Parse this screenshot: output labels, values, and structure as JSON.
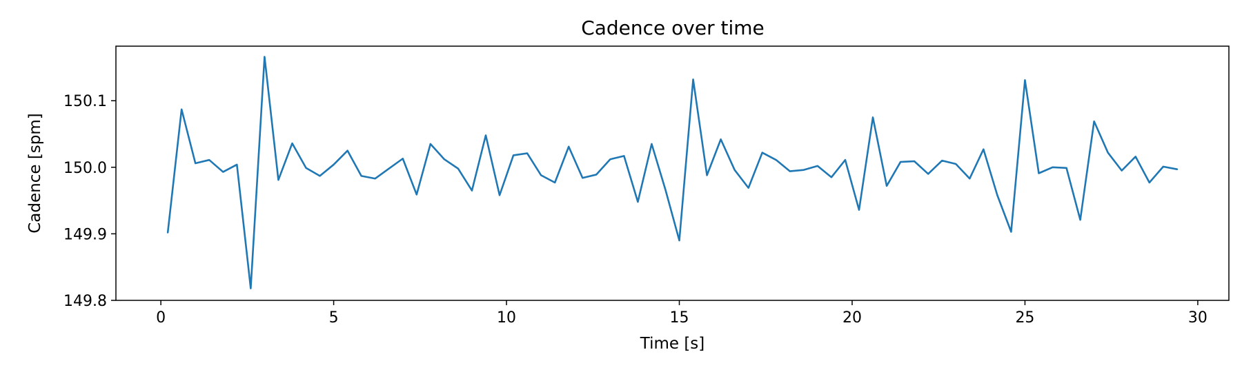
{
  "chart_data": {
    "type": "line",
    "title": "Cadence over time",
    "xlabel": "Time [s]",
    "ylabel": "Cadence [spm]",
    "xlim": [
      -1.3,
      30.9
    ],
    "ylim": [
      149.8,
      150.182
    ],
    "xticks": [
      0,
      5,
      10,
      15,
      20,
      25,
      30
    ],
    "xtick_labels": [
      "0",
      "5",
      "10",
      "15",
      "20",
      "25",
      "30"
    ],
    "yticks": [
      149.8,
      149.9,
      150.0,
      150.1
    ],
    "ytick_labels": [
      "149.8",
      "149.9",
      "150.0",
      "150.1"
    ],
    "grid": false,
    "series": [
      {
        "color": "#1f77b4",
        "x": [
          0.2,
          0.6,
          1.0,
          1.4,
          1.8,
          2.2,
          2.6,
          3.0,
          3.4,
          3.8,
          4.2,
          4.6,
          5.0,
          5.4,
          5.8,
          6.2,
          6.6,
          7.0,
          7.4,
          7.8,
          8.2,
          8.6,
          9.0,
          9.4,
          9.8,
          10.2,
          10.6,
          11.0,
          11.4,
          11.8,
          12.2,
          12.6,
          13.0,
          13.4,
          13.8,
          14.2,
          14.6,
          15.0,
          15.4,
          15.8,
          16.2,
          16.6,
          17.0,
          17.4,
          17.8,
          18.2,
          18.6,
          19.0,
          19.4,
          19.8,
          20.2,
          20.6,
          21.0,
          21.4,
          21.8,
          22.2,
          22.6,
          23.0,
          23.4,
          23.8,
          24.2,
          24.6,
          25.0,
          25.4,
          25.8,
          26.2,
          26.6,
          27.0,
          27.4,
          27.8,
          28.2,
          28.6,
          29.0,
          29.4
        ],
        "y": [
          149.902,
          150.087,
          150.006,
          150.011,
          149.993,
          150.004,
          149.818,
          150.166,
          149.981,
          150.036,
          149.999,
          149.987,
          150.004,
          150.025,
          149.987,
          149.983,
          149.998,
          150.013,
          149.959,
          150.035,
          150.012,
          149.998,
          149.965,
          150.048,
          149.958,
          150.018,
          150.021,
          149.988,
          149.977,
          150.031,
          149.984,
          149.989,
          150.012,
          150.017,
          149.948,
          150.035,
          149.966,
          149.89,
          150.132,
          149.988,
          150.042,
          149.996,
          149.969,
          150.022,
          150.011,
          149.994,
          149.996,
          150.002,
          149.985,
          150.011,
          149.936,
          150.075,
          149.972,
          150.008,
          150.009,
          149.99,
          150.01,
          150.005,
          149.983,
          150.027,
          149.958,
          149.903,
          150.131,
          149.991,
          150.0,
          149.999,
          149.921,
          150.069,
          150.022,
          149.995,
          150.016,
          149.977,
          150.001,
          149.997
        ]
      }
    ]
  }
}
